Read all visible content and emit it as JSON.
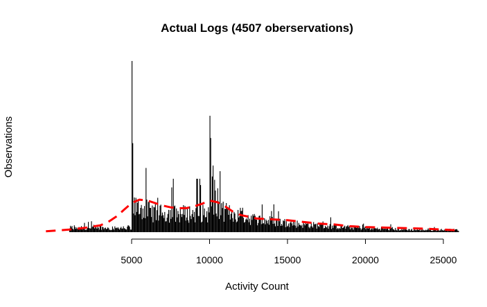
{
  "chart_data": {
    "type": "bar",
    "title": "Actual Logs (4507 oberservations)",
    "xlabel": "Activity Count",
    "ylabel": "Observations",
    "xlim": [
      1000,
      26000
    ],
    "x_ticks": [
      "5000",
      "10000",
      "15000",
      "20000",
      "25000"
    ],
    "y_ticks_shown": false,
    "bar_color": "#000000",
    "series": [
      {
        "type": "histogram",
        "bin_width": 50,
        "peaks": [
          {
            "x": 5000,
            "value": 100
          },
          {
            "x": 5050,
            "value": 52
          },
          {
            "x": 10000,
            "value": 68
          },
          {
            "x": 10050,
            "value": 55
          }
        ]
      },
      {
        "type": "density-line",
        "style": "dashed",
        "color": "#ff0000",
        "x": [
          -500,
          1000,
          2000,
          3000,
          3500,
          4000,
          4500,
          5000,
          5500,
          6000,
          6500,
          7000,
          7500,
          8000,
          8500,
          9000,
          9500,
          10000,
          10500,
          11000,
          11500,
          12000,
          13000,
          14000,
          15000,
          16000,
          17000,
          18000,
          19000,
          20000,
          22000,
          24000,
          26000
        ],
        "y": [
          0.5,
          1.5,
          2.5,
          4,
          6,
          9,
          13,
          17,
          19,
          18.5,
          17,
          15.5,
          14.5,
          14,
          14,
          15,
          16.5,
          18.5,
          17.5,
          15,
          12,
          10,
          8,
          7.5,
          7,
          6,
          5,
          4.5,
          3.5,
          3,
          2.5,
          2,
          1
        ]
      }
    ]
  }
}
